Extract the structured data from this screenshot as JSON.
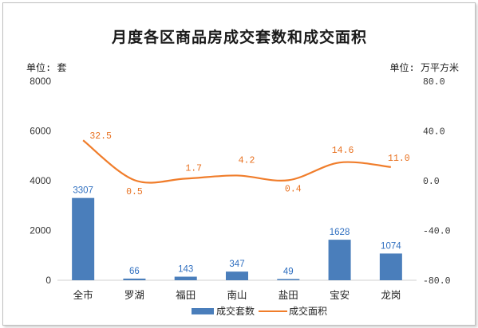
{
  "title": "月度各区商品房成交套数和成交面积",
  "left_unit": "单位: 套",
  "right_unit": "单位: 万平方米",
  "colors": {
    "bar": "#4a7ebb",
    "line": "#f07d2b",
    "bar_label": "#2f6fc0",
    "line_label": "#e8701f"
  },
  "legend": {
    "bar_label": "成交套数",
    "line_label": "成交面积"
  },
  "chart_data": {
    "type": "bar",
    "categories": [
      "全市",
      "罗湖",
      "福田",
      "南山",
      "盐田",
      "宝安",
      "龙岗"
    ],
    "series": [
      {
        "name": "成交套数",
        "type": "bar",
        "axis": "left",
        "values": [
          3307,
          66,
          143,
          347,
          49,
          1628,
          1074
        ]
      },
      {
        "name": "成交面积",
        "type": "line",
        "axis": "right",
        "values": [
          32.5,
          0.5,
          1.7,
          4.2,
          0.4,
          14.6,
          11.0
        ]
      }
    ],
    "left_ticks": [
      "0",
      "2000",
      "4000",
      "6000",
      "8000"
    ],
    "right_ticks": [
      "-80.0",
      "-40.0",
      "0.0",
      "40.0",
      "80.0"
    ],
    "ylim_left": [
      0,
      8000
    ],
    "ylim_right": [
      -80,
      80
    ],
    "bar_value_labels": [
      "3307",
      "66",
      "143",
      "347",
      "49",
      "1628",
      "1074"
    ],
    "line_value_labels": [
      "32.5",
      "0.5",
      "1.7",
      "4.2",
      "0.4",
      "14.6",
      "11.0"
    ],
    "grid": false,
    "legend_position": "bottom"
  }
}
